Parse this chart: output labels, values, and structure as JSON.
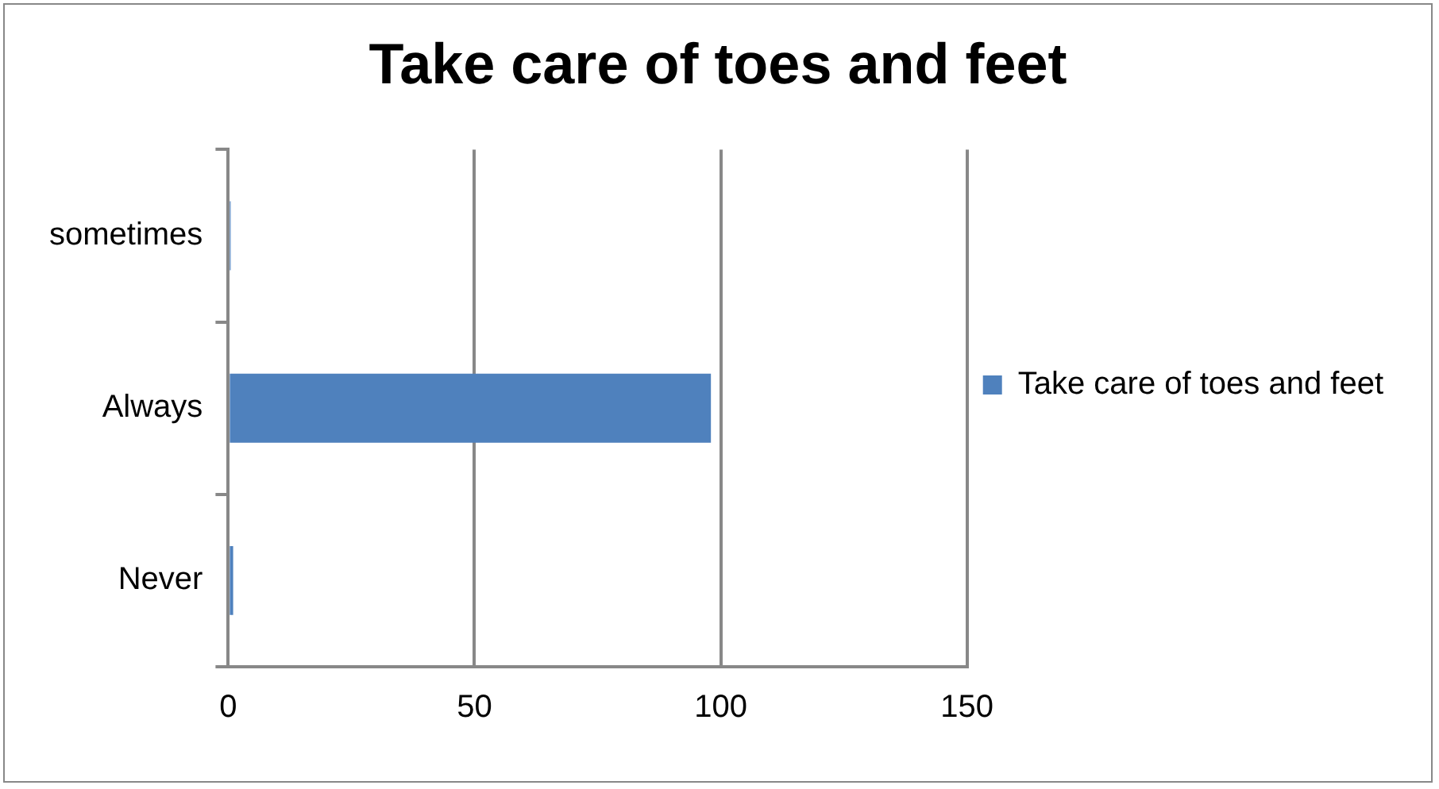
{
  "chart_data": {
    "type": "bar",
    "orientation": "horizontal",
    "title": "Take care of toes and feet",
    "categories": [
      "sometimes",
      "Always",
      "Never"
    ],
    "series": [
      {
        "name": "Take care of toes and feet",
        "color": "#4f81bd",
        "values": [
          0.5,
          98,
          1
        ]
      }
    ],
    "xlim": [
      0,
      150
    ],
    "xticks": [
      0,
      50,
      100,
      150
    ],
    "grid": "x",
    "legend": "right"
  }
}
